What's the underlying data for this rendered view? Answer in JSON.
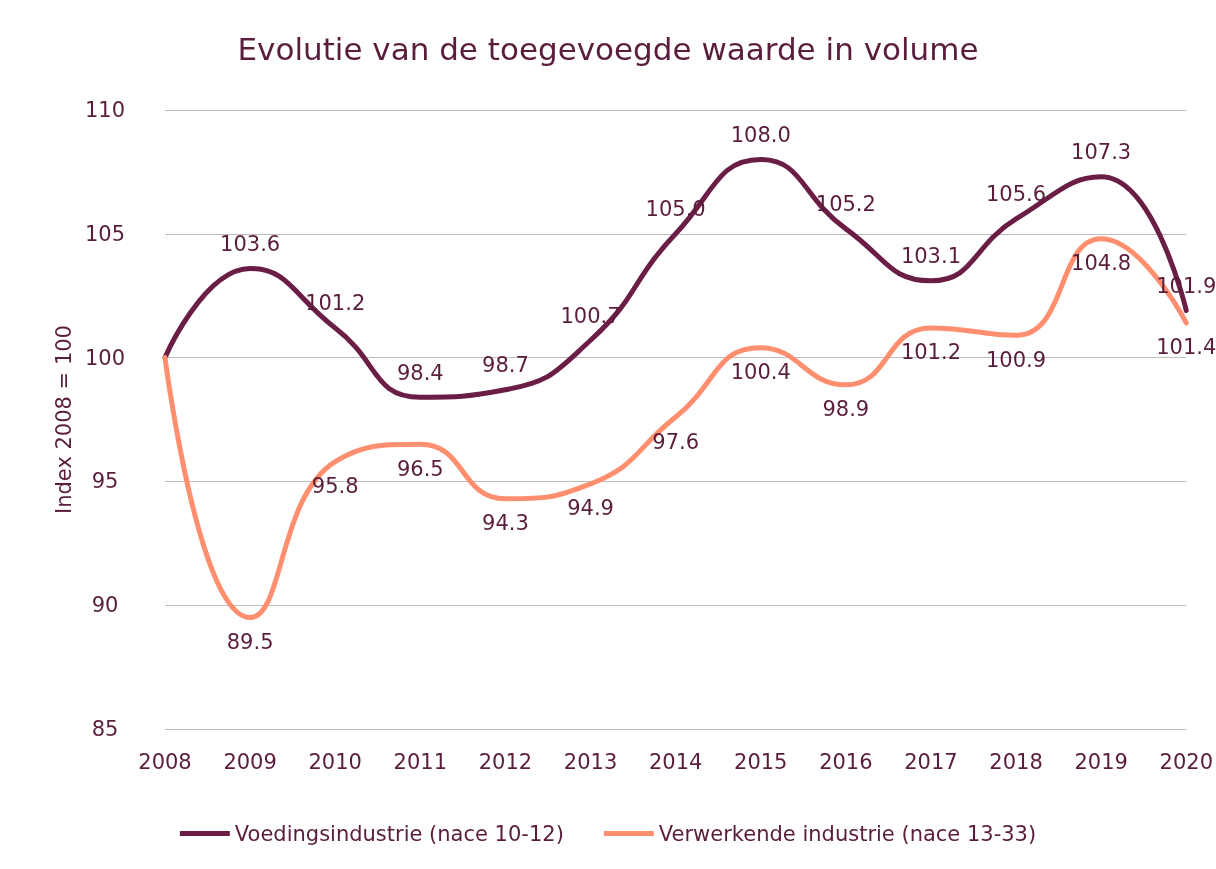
{
  "chart_data": {
    "type": "line",
    "title": "Evolutie van de toegevoegde waarde in volume",
    "ylabel": "Index 2008 = 100",
    "categories": [
      "2008",
      "2009",
      "2010",
      "2011",
      "2012",
      "2013",
      "2014",
      "2015",
      "2016",
      "2017",
      "2018",
      "2019",
      "2020"
    ],
    "series": [
      {
        "name": "Voedingsindustrie (nace 10-12)",
        "color": "#6b1e45",
        "values": [
          100,
          103.6,
          101.2,
          98.4,
          98.7,
          100.7,
          105.0,
          108.0,
          105.2,
          103.1,
          105.6,
          107.3,
          101.9
        ],
        "value_labels": [
          null,
          "103.6",
          "101.2",
          "98.4",
          "98.7",
          "100.7",
          "105.0",
          "108.0",
          "105.2",
          "103.1",
          "105.6",
          "107.3",
          "101.9"
        ]
      },
      {
        "name": "Verwerkende industrie (nace 13-33)",
        "color": "#ff8f6e",
        "values": [
          100,
          89.5,
          95.8,
          96.5,
          94.3,
          94.9,
          97.6,
          100.4,
          98.9,
          101.2,
          100.9,
          104.8,
          101.4
        ],
        "value_labels": [
          null,
          "89.5",
          "95.8",
          "96.5",
          "94.3",
          "94.9",
          "97.6",
          "100.4",
          "98.9",
          "101.2",
          "100.9",
          "104.8",
          "101.4"
        ]
      }
    ],
    "ylim": [
      85,
      110
    ],
    "yticks": [
      85,
      90,
      95,
      100,
      105,
      110
    ],
    "grid": "y",
    "legend": "bottom",
    "marker": "none",
    "line_style": "solid"
  }
}
